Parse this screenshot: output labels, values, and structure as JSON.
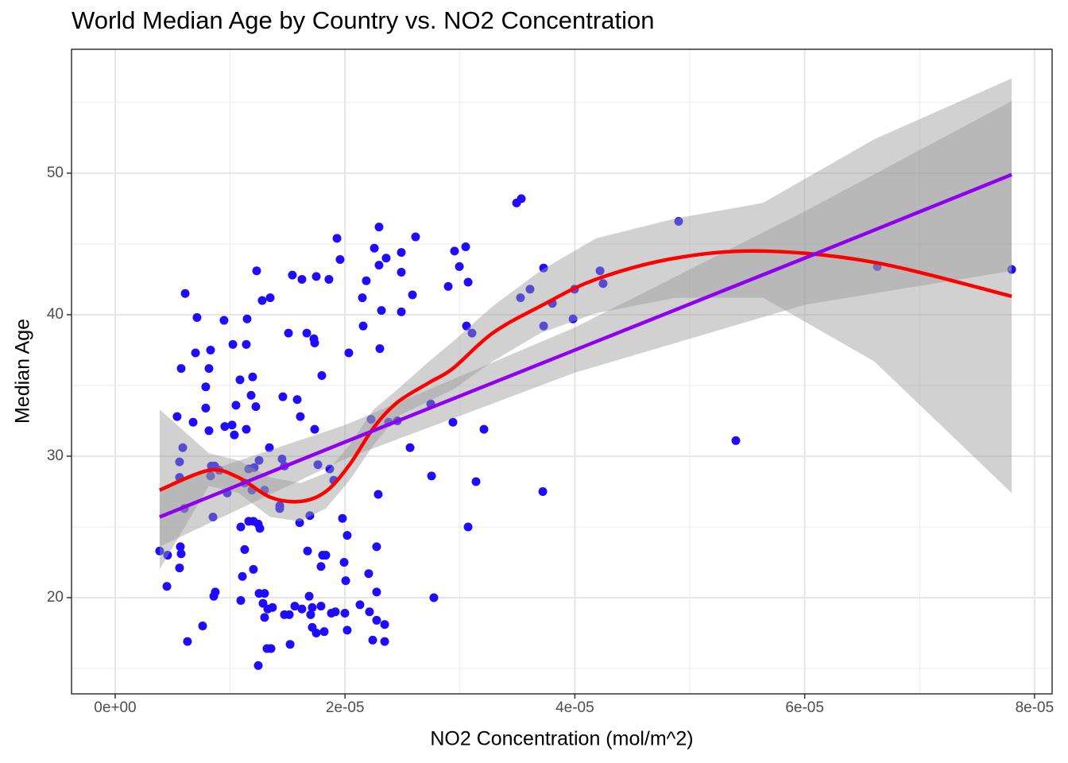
{
  "chart_data": {
    "type": "scatter",
    "title": "World Median Age by Country vs. NO2 Concentration",
    "x_label": "NO2 Concentration (mol/m^2)",
    "y_label": "Median Age",
    "xlim": [
      -3.8e-06,
      8.153e-05
    ],
    "ylim": [
      13.2,
      58.76
    ],
    "xticks": [
      {
        "value": 0,
        "label": "0e+00"
      },
      {
        "value": 2e-05,
        "label": "2e-05"
      },
      {
        "value": 4e-05,
        "label": "4e-05"
      },
      {
        "value": 6e-05,
        "label": "6e-05"
      },
      {
        "value": 8e-05,
        "label": "8e-05"
      }
    ],
    "yticks": [
      20,
      30,
      40,
      50
    ],
    "grid": true,
    "minor_grid": true,
    "series": [
      {
        "type": "scatter",
        "color": "#1f0bff",
        "x": [
          3.87e-06,
          4.56e-06,
          4.5e-06,
          5.39e-06,
          5.6e-06,
          5.67e-06,
          5.74e-06,
          5.6e-06,
          5.6e-06,
          5.74e-06,
          5.88e-06,
          6.09e-06,
          6.02e-06,
          6.29e-06,
          6.78e-06,
          6.99e-06,
          7.12e-06,
          7.61e-06,
          7.88e-06,
          7.88e-06,
          8.16e-06,
          8.16e-06,
          8.3e-06,
          8.3e-06,
          8.37e-06,
          8.65e-06,
          8.51e-06,
          8.58e-06,
          8.71e-06,
          9.06e-06,
          9.47e-06,
          9.54e-06,
          9.75e-06,
          1.017e-05,
          1.024e-05,
          1.037e-05,
          1.051e-05,
          1.086e-05,
          1.093e-05,
          1.107e-05,
          1.093e-05,
          1.127e-05,
          1.127e-05,
          1.141e-05,
          1.141e-05,
          1.148e-05,
          1.162e-05,
          1.162e-05,
          1.183e-05,
          1.19e-05,
          1.196e-05,
          1.203e-05,
          1.203e-05,
          1.21e-05,
          1.224e-05,
          1.231e-05,
          1.245e-05,
          1.252e-05,
          1.252e-05,
          1.259e-05,
          1.245e-05,
          1.279e-05,
          1.286e-05,
          1.3e-05,
          1.3e-05,
          1.3e-05,
          1.321e-05,
          1.328e-05,
          1.349e-05,
          1.356e-05,
          1.342e-05,
          1.369e-05,
          1.432e-05,
          1.432e-05,
          1.452e-05,
          1.459e-05,
          1.473e-05,
          1.473e-05,
          1.508e-05,
          1.515e-05,
          1.522e-05,
          1.542e-05,
          1.563e-05,
          1.584e-05,
          1.605e-05,
          1.611e-05,
          1.625e-05,
          1.625e-05,
          1.667e-05,
          1.674e-05,
          1.694e-05,
          1.688e-05,
          1.701e-05,
          1.715e-05,
          1.715e-05,
          1.729e-05,
          1.736e-05,
          1.736e-05,
          1.75e-05,
          1.75e-05,
          1.764e-05,
          1.791e-05,
          1.791e-05,
          1.798e-05,
          1.805e-05,
          1.819e-05,
          1.833e-05,
          1.86e-05,
          1.867e-05,
          1.881e-05,
          1.902e-05,
          1.916e-05,
          1.93e-05,
          1.957e-05,
          1.978e-05,
          1.999e-05,
          1.992e-05,
          2.006e-05,
          2.019e-05,
          2.019e-05,
          2.033e-05,
          2.13e-05,
          2.151e-05,
          2.158e-05,
          2.185e-05,
          2.206e-05,
          2.213e-05,
          2.227e-05,
          2.241e-05,
          2.255e-05,
          2.275e-05,
          2.275e-05,
          2.275e-05,
          2.289e-05,
          2.296e-05,
          2.296e-05,
          2.303e-05,
          2.317e-05,
          2.345e-05,
          2.345e-05,
          2.358e-05,
          2.379e-05,
          2.455e-05,
          2.49e-05,
          2.49e-05,
          2.49e-05,
          2.566e-05,
          2.587e-05,
          2.614e-05,
          2.753e-05,
          2.773e-05,
          2.746e-05,
          2.939e-05,
          2.898e-05,
          2.953e-05,
          2.995e-05,
          3.05e-05,
          3.057e-05,
          3.071e-05,
          3.105e-05,
          3.14e-05,
          3.071e-05,
          3.209e-05,
          3.493e-05,
          3.534e-05,
          3.527e-05,
          3.61e-05,
          3.721e-05,
          3.728e-05,
          3.728e-05,
          3.804e-05,
          3.984e-05,
          3.997e-05,
          4.219e-05,
          4.246e-05,
          4.903e-05,
          5.401e-05,
          6.632e-05,
          7.801e-05
        ],
        "values": [
          23.3,
          23.0,
          20.8,
          32.8,
          22.1,
          23.6,
          23.1,
          28.5,
          29.6,
          36.2,
          30.6,
          41.5,
          26.3,
          16.9,
          32.4,
          37.3,
          39.8,
          18.0,
          34.9,
          33.4,
          31.8,
          36.2,
          37.5,
          28.6,
          29.3,
          29.3,
          25.7,
          20.1,
          20.4,
          29.0,
          39.6,
          32.1,
          27.4,
          32.2,
          37.9,
          31.5,
          33.6,
          35.4,
          25.0,
          21.5,
          19.8,
          23.4,
          28.1,
          37.9,
          31.9,
          39.7,
          29.1,
          25.4,
          34.3,
          27.6,
          35.6,
          25.4,
          22.0,
          29.2,
          33.5,
          43.1,
          25.2,
          29.7,
          20.3,
          24.9,
          15.2,
          41.0,
          19.6,
          18.6,
          20.3,
          27.6,
          16.4,
          19.2,
          41.2,
          16.4,
          30.6,
          19.3,
          26.5,
          26.3,
          29.8,
          34.2,
          18.8,
          29.3,
          38.7,
          18.8,
          16.7,
          42.8,
          19.4,
          34.0,
          25.3,
          32.8,
          19.2,
          42.5,
          38.7,
          23.3,
          25.8,
          20.1,
          18.8,
          17.9,
          19.3,
          38.3,
          38.0,
          31.9,
          42.7,
          17.5,
          29.4,
          22.2,
          19.4,
          35.7,
          23.0,
          17.6,
          23.0,
          42.5,
          29.1,
          18.9,
          28.3,
          19.0,
          45.4,
          43.9,
          25.6,
          18.9,
          22.5,
          21.2,
          24.4,
          17.7,
          37.3,
          19.5,
          41.2,
          39.2,
          42.4,
          21.7,
          19.0,
          32.6,
          17.0,
          44.7,
          23.6,
          20.4,
          18.4,
          27.3,
          46.2,
          43.5,
          37.6,
          40.3,
          16.9,
          18.1,
          44.0,
          32.4,
          32.5,
          44.4,
          43.0,
          40.2,
          30.6,
          41.4,
          45.5,
          28.6,
          20.0,
          33.7,
          32.4,
          42.0,
          44.5,
          43.4,
          44.8,
          39.2,
          42.3,
          38.7,
          28.2,
          25.0,
          31.9,
          47.9,
          48.2,
          41.2,
          41.8,
          27.5,
          43.3,
          39.2,
          40.8,
          39.7,
          41.8,
          43.1,
          42.2,
          46.6,
          31.1,
          43.4,
          43.2
        ]
      },
      {
        "type": "line",
        "color": "#ff0000",
        "band_color": "#999999",
        "x": [
          3.87e-06,
          8.16e-06,
          1.072e-05,
          1.349e-05,
          1.611e-05,
          1.833e-05,
          2.04e-05,
          2.248e-05,
          2.455e-05,
          2.732e-05,
          2.939e-05,
          3.285e-05,
          3.7e-05,
          4.184e-05,
          4.876e-05,
          5.637e-05,
          6.605e-05,
          7.801e-05
        ],
        "values": [
          27.6,
          29.0,
          28.5,
          27.1,
          26.8,
          27.5,
          29.4,
          32.0,
          33.8,
          35.2,
          36.2,
          38.7,
          40.6,
          42.5,
          44.0,
          44.5,
          43.7,
          41.3
        ],
        "lower": [
          22.0,
          27.9,
          27.4,
          25.7,
          25.4,
          26.3,
          28.3,
          30.8,
          32.8,
          33.9,
          34.7,
          36.7,
          38.7,
          40.1,
          41.2,
          41.2,
          36.7,
          27.4
        ],
        "upper": [
          33.3,
          30.2,
          29.7,
          28.5,
          28.1,
          28.8,
          30.8,
          33.3,
          34.7,
          36.7,
          38.1,
          40.6,
          43.1,
          45.4,
          46.8,
          47.9,
          52.4,
          56.7
        ]
      },
      {
        "type": "line",
        "color": "#8f00ee",
        "band_color": "#999999",
        "x": [
          3.87e-06,
          2e-05,
          4e-05,
          6e-05,
          7.801e-05
        ],
        "values": [
          25.7,
          31.0,
          37.5,
          44.0,
          49.9
        ],
        "lower": [
          23.6,
          29.8,
          35.9,
          40.7,
          43.1
        ],
        "upper": [
          27.8,
          32.2,
          39.1,
          47.3,
          55.1
        ]
      }
    ]
  }
}
